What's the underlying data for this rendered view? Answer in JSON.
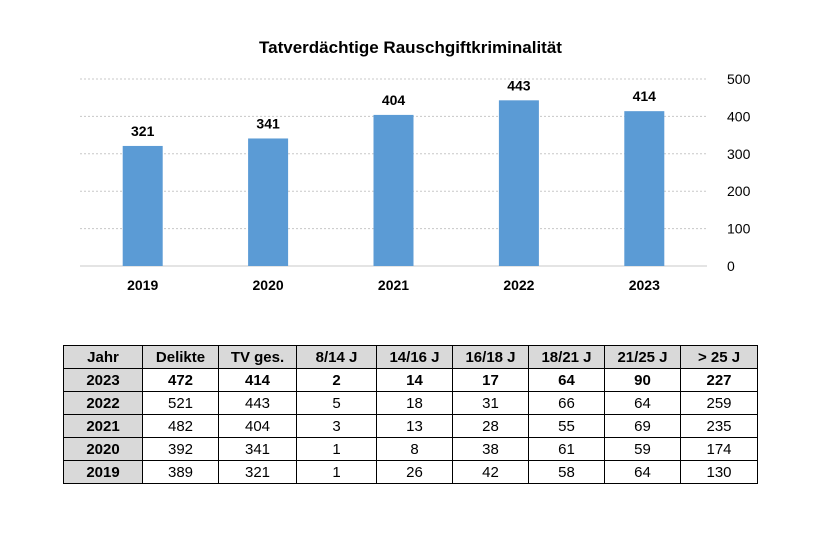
{
  "chart_data": {
    "type": "bar",
    "title": "Tatverdächtige Rauschgiftkriminalität",
    "categories": [
      "2019",
      "2020",
      "2021",
      "2022",
      "2023"
    ],
    "values": [
      321,
      341,
      404,
      443,
      414
    ],
    "ylim": [
      0,
      500
    ],
    "yticks": [
      0,
      100,
      200,
      300,
      400,
      500
    ],
    "y_axis_position": "right",
    "grid": true,
    "bar_color": "#5b9bd5",
    "grid_color": "#c8c8c8"
  },
  "table": {
    "headers": [
      "Jahr",
      "Delikte",
      "TV ges.",
      "8/14 J",
      "14/16 J",
      "16/18 J",
      "18/21 J",
      "21/25 J",
      "> 25 J"
    ],
    "rows": [
      [
        "2023",
        "472",
        "414",
        "2",
        "14",
        "17",
        "64",
        "90",
        "227"
      ],
      [
        "2022",
        "521",
        "443",
        "5",
        "18",
        "31",
        "66",
        "64",
        "259"
      ],
      [
        "2021",
        "482",
        "404",
        "3",
        "13",
        "28",
        "55",
        "69",
        "235"
      ],
      [
        "2020",
        "392",
        "341",
        "1",
        "8",
        "38",
        "61",
        "59",
        "174"
      ],
      [
        "2019",
        "389",
        "321",
        "1",
        "26",
        "42",
        "58",
        "64",
        "130"
      ]
    ],
    "highlight_row": 0,
    "header_color": "#d9d9d9"
  }
}
